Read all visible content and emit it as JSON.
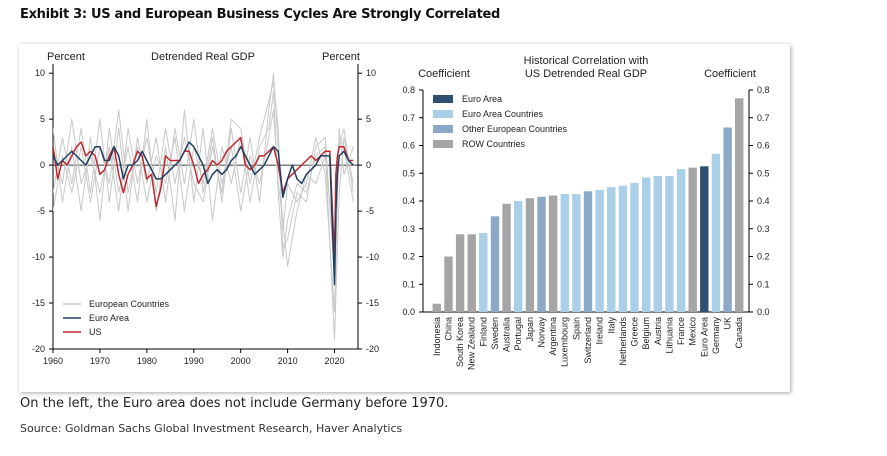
{
  "exhibit_title": "Exhibit 3: US and European Business Cycles Are Strongly Correlated",
  "caption": "On the left, the Euro area does not include Germany before 1970.",
  "source": "Source: Goldman Sachs Global Investment Research, Haver Analytics",
  "colors": {
    "euro_area": "#1f3f63",
    "us": "#c0272d",
    "european_countries": "#c8c8c8",
    "euro_area_countries": "#a9cfe9",
    "other_european": "#8ca8c8",
    "row": "#a5a5a5",
    "euro_area_bar": "#2f4f6f"
  },
  "chart_data": [
    {
      "type": "line",
      "title": "Detrended Real GDP",
      "ylabel_left": "Percent",
      "ylabel_right": "Percent",
      "xlim": [
        1960,
        2025
      ],
      "ylim": [
        -20,
        11
      ],
      "x_ticks": [
        1960,
        1970,
        1980,
        1990,
        2000,
        2010,
        2020
      ],
      "y_ticks": [
        10,
        5,
        0,
        -5,
        -10,
        -15,
        -20
      ],
      "legend": [
        "European Countries",
        "Euro Area",
        "US"
      ],
      "legend_position": "bottom-left",
      "series": [
        {
          "name": "US",
          "x": [
            1960,
            1961,
            1962,
            1963,
            1964,
            1965,
            1966,
            1967,
            1968,
            1969,
            1970,
            1971,
            1972,
            1973,
            1974,
            1975,
            1976,
            1977,
            1978,
            1979,
            1980,
            1981,
            1982,
            1983,
            1984,
            1985,
            1986,
            1987,
            1988,
            1989,
            1990,
            1991,
            1992,
            1993,
            1994,
            1995,
            1996,
            1997,
            1998,
            1999,
            2000,
            2001,
            2002,
            2003,
            2004,
            2005,
            2006,
            2007,
            2008,
            2009,
            2010,
            2011,
            2012,
            2013,
            2014,
            2015,
            2016,
            2017,
            2018,
            2019,
            2020,
            2020.3,
            2020.6,
            2021,
            2022,
            2023,
            2024
          ],
          "values": [
            2,
            -1.5,
            0.5,
            0,
            1,
            2,
            2.5,
            1,
            1.5,
            1,
            -1,
            -0.5,
            1,
            2,
            -1,
            -3,
            -1,
            0,
            1.5,
            1,
            -1.5,
            -1,
            -4.5,
            -2.5,
            1,
            0.5,
            0.5,
            0.5,
            1.5,
            1.5,
            0,
            -2,
            -1,
            -0.5,
            0.5,
            0,
            0.5,
            1.5,
            2,
            2.5,
            3,
            0,
            -0.5,
            0,
            1,
            1,
            1.5,
            2,
            0,
            -3,
            -1.5,
            -1,
            -0.5,
            0,
            0.5,
            1,
            0.5,
            1,
            1.5,
            1.5,
            -10,
            -1,
            1,
            2,
            2,
            0.5,
            0.5
          ]
        },
        {
          "name": "Euro Area",
          "x": [
            1960,
            1961,
            1962,
            1963,
            1964,
            1965,
            1966,
            1967,
            1968,
            1969,
            1970,
            1971,
            1972,
            1973,
            1974,
            1975,
            1976,
            1977,
            1978,
            1979,
            1980,
            1981,
            1982,
            1983,
            1984,
            1985,
            1986,
            1987,
            1988,
            1989,
            1990,
            1991,
            1992,
            1993,
            1994,
            1995,
            1996,
            1997,
            1998,
            1999,
            2000,
            2001,
            2002,
            2003,
            2004,
            2005,
            2006,
            2007,
            2008,
            2009,
            2010,
            2011,
            2012,
            2013,
            2014,
            2015,
            2016,
            2017,
            2018,
            2019,
            2020,
            2020.3,
            2020.6,
            2021,
            2022,
            2023,
            2024
          ],
          "values": [
            1,
            0,
            0.5,
            1,
            1.5,
            1,
            0.5,
            0,
            1,
            2,
            2,
            0.5,
            0.5,
            2,
            1,
            -1.5,
            0,
            0,
            0.5,
            1.5,
            0.5,
            -0.5,
            -1.5,
            -1.5,
            -1,
            -0.5,
            0,
            0.5,
            1.5,
            2.5,
            2,
            1,
            0,
            -2,
            -1,
            -0.5,
            -1,
            -0.5,
            0.5,
            1,
            2,
            1,
            0,
            -1,
            -0.5,
            0,
            1,
            2,
            1.5,
            -3.5,
            -1.5,
            0,
            -1.5,
            -2,
            -1,
            -0.5,
            0,
            1,
            1,
            1,
            -13,
            -5,
            -1,
            1,
            1.5,
            0.5,
            0
          ]
        },
        {
          "name": "European Countries",
          "x": [
            1960,
            1962,
            1964,
            1966,
            1968,
            1970,
            1972,
            1974,
            1976,
            1978,
            1980,
            1982,
            1984,
            1986,
            1988,
            1990,
            1992,
            1994,
            1996,
            1998,
            2000,
            2002,
            2004,
            2006,
            2007,
            2008,
            2009,
            2010,
            2012,
            2014,
            2016,
            2018,
            2020,
            2021,
            2022,
            2024
          ],
          "values": [
            4,
            -4,
            2,
            -5,
            3,
            -6,
            4,
            -3,
            2,
            -4,
            5,
            -5,
            2,
            -6,
            6,
            -4,
            4,
            -6,
            2,
            -2,
            3,
            -4,
            2,
            4,
            8,
            -3,
            -10,
            -6,
            -2,
            -3,
            1,
            2,
            -19,
            -3,
            3,
            -2
          ]
        },
        {
          "name": "European Countries",
          "x": [
            1960,
            1962,
            1964,
            1966,
            1968,
            1970,
            1972,
            1974,
            1976,
            1978,
            1980,
            1982,
            1984,
            1986,
            1988,
            1990,
            1992,
            1994,
            1996,
            1998,
            2000,
            2002,
            2004,
            2006,
            2007,
            2008,
            2009,
            2010,
            2012,
            2014,
            2016,
            2018,
            2020,
            2021,
            2022,
            2024
          ],
          "values": [
            -3,
            3,
            -2,
            4,
            -3,
            5,
            -4,
            4,
            -5,
            3,
            -2,
            3,
            -4,
            4,
            -2,
            5,
            -3,
            3,
            -4,
            4,
            -3,
            3,
            -4,
            6,
            10,
            2,
            -7,
            -2,
            -4,
            -2,
            3,
            -1,
            -16,
            4,
            -1,
            2
          ]
        },
        {
          "name": "European Countries",
          "x": [
            1960,
            1962,
            1964,
            1966,
            1968,
            1970,
            1972,
            1974,
            1976,
            1978,
            1980,
            1982,
            1984,
            1986,
            1988,
            1990,
            1992,
            1994,
            1996,
            1998,
            2000,
            2002,
            2004,
            2006,
            2007,
            2008,
            2009,
            2010,
            2012,
            2014,
            2016,
            2018,
            2020,
            2021,
            2022,
            2024
          ],
          "values": [
            2,
            -2,
            5,
            -2,
            1,
            -3,
            2,
            -5,
            4,
            -2,
            3,
            -3,
            4,
            -2,
            3,
            -2,
            -4,
            2,
            -3,
            5,
            4,
            -2,
            3,
            7,
            9,
            4,
            -9,
            -8,
            -3,
            -4,
            2,
            3,
            -12,
            2,
            4,
            -3
          ]
        },
        {
          "name": "European Countries",
          "x": [
            1960,
            1962,
            1964,
            1966,
            1968,
            1970,
            1972,
            1974,
            1976,
            1978,
            1980,
            1982,
            1984,
            1986,
            1988,
            1990,
            1992,
            1994,
            1996,
            1998,
            2000,
            2002,
            2004,
            2006,
            2007,
            2008,
            2009,
            2010,
            2012,
            2014,
            2016,
            2018,
            2020,
            2021,
            2022,
            2024
          ],
          "values": [
            -5,
            1,
            -3,
            2,
            -4,
            2,
            -2,
            6,
            -3,
            2,
            -4,
            1,
            -2,
            3,
            -5,
            2,
            -2,
            4,
            -2,
            2,
            -5,
            1,
            -2,
            3,
            6,
            -2,
            -6,
            -11,
            -5,
            -1,
            -2,
            1,
            -9,
            3,
            2,
            -4
          ]
        }
      ]
    },
    {
      "type": "bar",
      "title": "Historical Correlation with US Detrended Real GDP",
      "ylabel_left": "Coefficient",
      "ylabel_right": "Coefficient",
      "ylim": [
        0,
        0.8
      ],
      "y_ticks": [
        0.8,
        0.7,
        0.6,
        0.5,
        0.4,
        0.3,
        0.2,
        0.1,
        0.0
      ],
      "legend": [
        "Euro Area",
        "Euro Area Countries",
        "Other European Countries",
        "ROW Countries"
      ],
      "legend_position": "top-left",
      "categories": [
        "Indonesia",
        "China",
        "South Korea",
        "New Zealand",
        "Finland",
        "Sweden",
        "Australia",
        "Portugal",
        "Japan",
        "Norway",
        "Argentina",
        "Luxembourg",
        "Spain",
        "Switzerland",
        "Ireland",
        "Italy",
        "Netherlands",
        "Greece",
        "Belgium",
        "Austria",
        "Lithuania",
        "France",
        "Mexico",
        "Euro Area",
        "Germany",
        "UK",
        "Canada"
      ],
      "values": [
        0.03,
        0.2,
        0.28,
        0.28,
        0.285,
        0.345,
        0.39,
        0.4,
        0.41,
        0.415,
        0.42,
        0.425,
        0.425,
        0.435,
        0.44,
        0.45,
        0.455,
        0.465,
        0.485,
        0.49,
        0.49,
        0.515,
        0.52,
        0.525,
        0.57,
        0.665,
        0.77
      ],
      "groups": [
        "ROW Countries",
        "ROW Countries",
        "ROW Countries",
        "ROW Countries",
        "Euro Area Countries",
        "Other European Countries",
        "ROW Countries",
        "Euro Area Countries",
        "ROW Countries",
        "Other European Countries",
        "ROW Countries",
        "Euro Area Countries",
        "Euro Area Countries",
        "Other European Countries",
        "Euro Area Countries",
        "Euro Area Countries",
        "Euro Area Countries",
        "Euro Area Countries",
        "Euro Area Countries",
        "Euro Area Countries",
        "Euro Area Countries",
        "Euro Area Countries",
        "ROW Countries",
        "Euro Area",
        "Euro Area Countries",
        "Other European Countries",
        "ROW Countries"
      ]
    }
  ]
}
